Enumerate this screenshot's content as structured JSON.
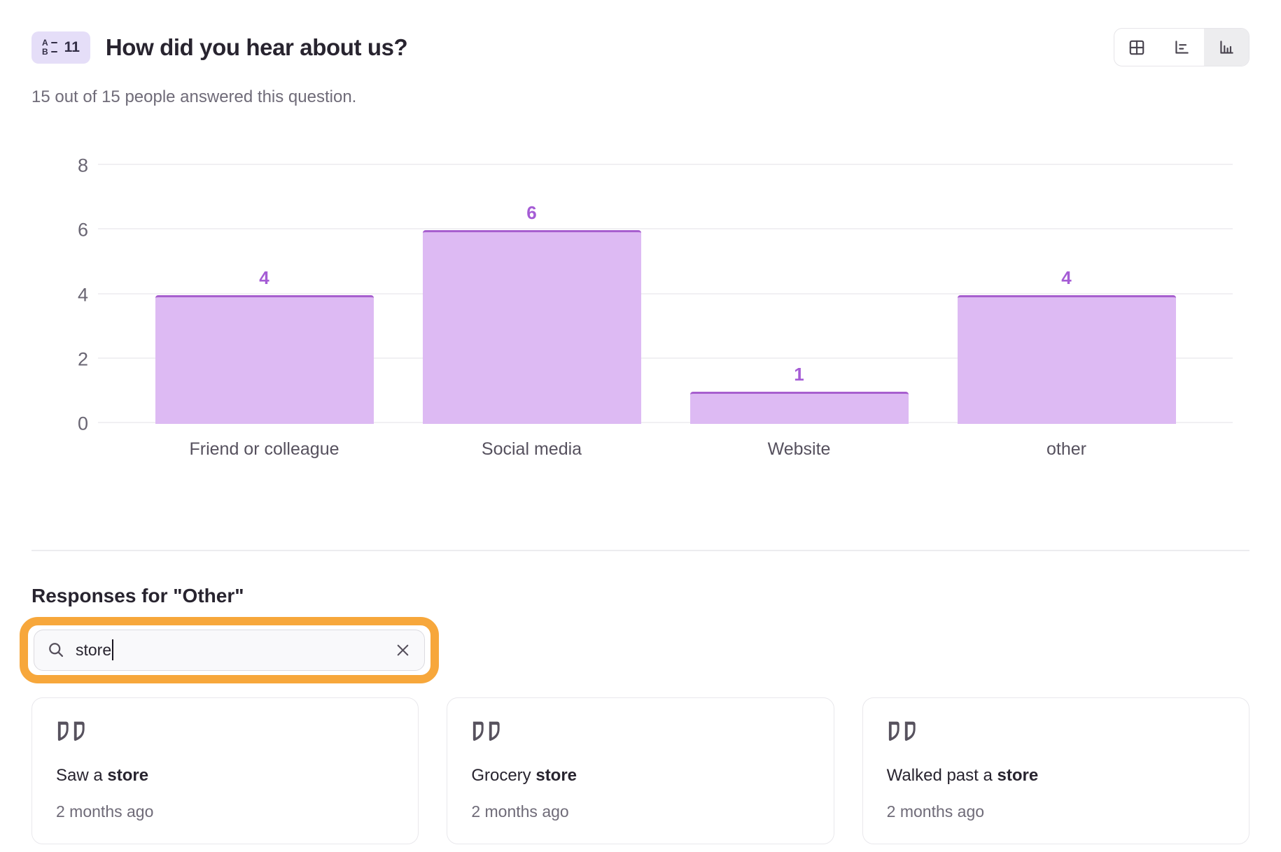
{
  "header": {
    "badge": {
      "number": "11",
      "icon": "multiple-choice-icon"
    },
    "title": "How did you hear about us?",
    "subtitle": "15 out of 15 people answered this question.",
    "view_toggle": {
      "options": [
        {
          "label": "Table view",
          "icon": "table-icon",
          "selected": false
        },
        {
          "label": "Horizontal bar chart view",
          "icon": "horizontal-bar-chart-icon",
          "selected": false
        },
        {
          "label": "Vertical bar chart view",
          "icon": "vertical-bar-chart-icon",
          "selected": true
        }
      ]
    }
  },
  "chart_data": {
    "type": "bar",
    "categories": [
      "Friend or colleague",
      "Social media",
      "Website",
      "other"
    ],
    "values": [
      4,
      6,
      1,
      4
    ],
    "title": "How did you hear about us?",
    "xlabel": "",
    "ylabel": "",
    "ylim": [
      0,
      8
    ],
    "yticks": [
      0,
      2,
      4,
      6,
      8
    ],
    "grid": true,
    "legend": false,
    "value_labels": true
  },
  "responses": {
    "heading": "Responses for \"Other\"",
    "search": {
      "value": "store",
      "icon": "search-icon",
      "clear_icon": "close-icon"
    },
    "cards": [
      {
        "prefix": "Saw a ",
        "match": "store",
        "suffix": "",
        "timestamp": "2 months ago"
      },
      {
        "prefix": "Grocery ",
        "match": "store",
        "suffix": "",
        "timestamp": "2 months ago"
      },
      {
        "prefix": "Walked past a ",
        "match": "store",
        "suffix": "",
        "timestamp": "2 months ago"
      }
    ]
  },
  "colors": {
    "bar_fill": "#ddbaf3",
    "bar_border": "#a75fce",
    "value_label": "#a55cd5",
    "badge_bg": "#e5def8",
    "highlight_ring": "#f7a73b",
    "text_dark": "#28242f",
    "text_gray": "#6f6b78"
  }
}
